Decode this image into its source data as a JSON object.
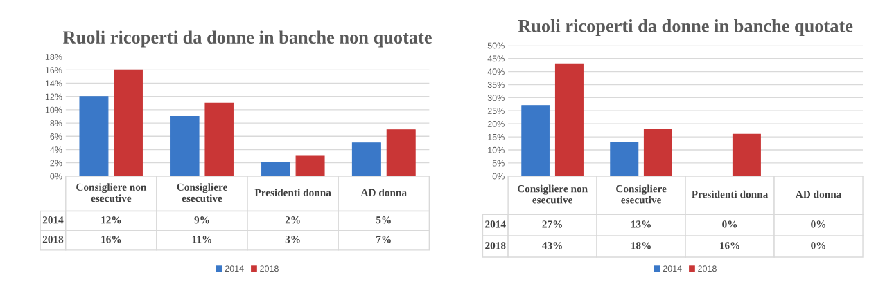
{
  "chart_data": [
    {
      "type": "bar",
      "title": "Ruoli ricoperti da donne in banche non quotate",
      "categories": [
        "Consigliere non\nesecutive",
        "Consigliere\nesecutive",
        "Presidenti donna",
        "AD donna"
      ],
      "series": [
        {
          "name": "2014",
          "color": "#3a78c8",
          "values": [
            12,
            9,
            2,
            5
          ],
          "value_labels": [
            "12%",
            "9%",
            "2%",
            "5%"
          ]
        },
        {
          "name": "2018",
          "color": "#c93636",
          "values": [
            16,
            11,
            3,
            7
          ],
          "value_labels": [
            "16%",
            "11%",
            "3%",
            "7%"
          ]
        }
      ],
      "ylim": [
        0,
        18
      ],
      "yticks": [
        {
          "value": 0,
          "label": "0%"
        },
        {
          "value": 2,
          "label": "2%"
        },
        {
          "value": 4,
          "label": "4%"
        },
        {
          "value": 6,
          "label": "6%"
        },
        {
          "value": 8,
          "label": "8%"
        },
        {
          "value": 10,
          "label": "10%"
        },
        {
          "value": 12,
          "label": "12%"
        },
        {
          "value": 14,
          "label": "14%"
        },
        {
          "value": 16,
          "label": "16%"
        },
        {
          "value": 18,
          "label": "18%"
        }
      ],
      "grid": "y",
      "legend": "bottom"
    },
    {
      "type": "bar",
      "title": "Ruoli ricoperti da donne in banche quotate",
      "categories": [
        "Consigliere non\nesecutive",
        "Consigliere\nesecutive",
        "Presidenti donna",
        "AD donna"
      ],
      "series": [
        {
          "name": "2014",
          "color": "#3a78c8",
          "values": [
            27,
            13,
            0,
            0
          ],
          "value_labels": [
            "27%",
            "13%",
            "0%",
            "0%"
          ]
        },
        {
          "name": "2018",
          "color": "#c93636",
          "values": [
            43,
            18,
            16,
            0
          ],
          "value_labels": [
            "43%",
            "18%",
            "16%",
            "0%"
          ]
        }
      ],
      "ylim": [
        0,
        50
      ],
      "yticks": [
        {
          "value": 0,
          "label": "0%"
        },
        {
          "value": 5,
          "label": "5%"
        },
        {
          "value": 10,
          "label": "10%"
        },
        {
          "value": 15,
          "label": "15%"
        },
        {
          "value": 20,
          "label": "20%"
        },
        {
          "value": 25,
          "label": "25%"
        },
        {
          "value": 30,
          "label": "30%"
        },
        {
          "value": 35,
          "label": "35%"
        },
        {
          "value": 40,
          "label": "40%"
        },
        {
          "value": 45,
          "label": "45%"
        },
        {
          "value": 50,
          "label": "50%"
        }
      ],
      "grid": "y",
      "legend": "bottom"
    }
  ]
}
